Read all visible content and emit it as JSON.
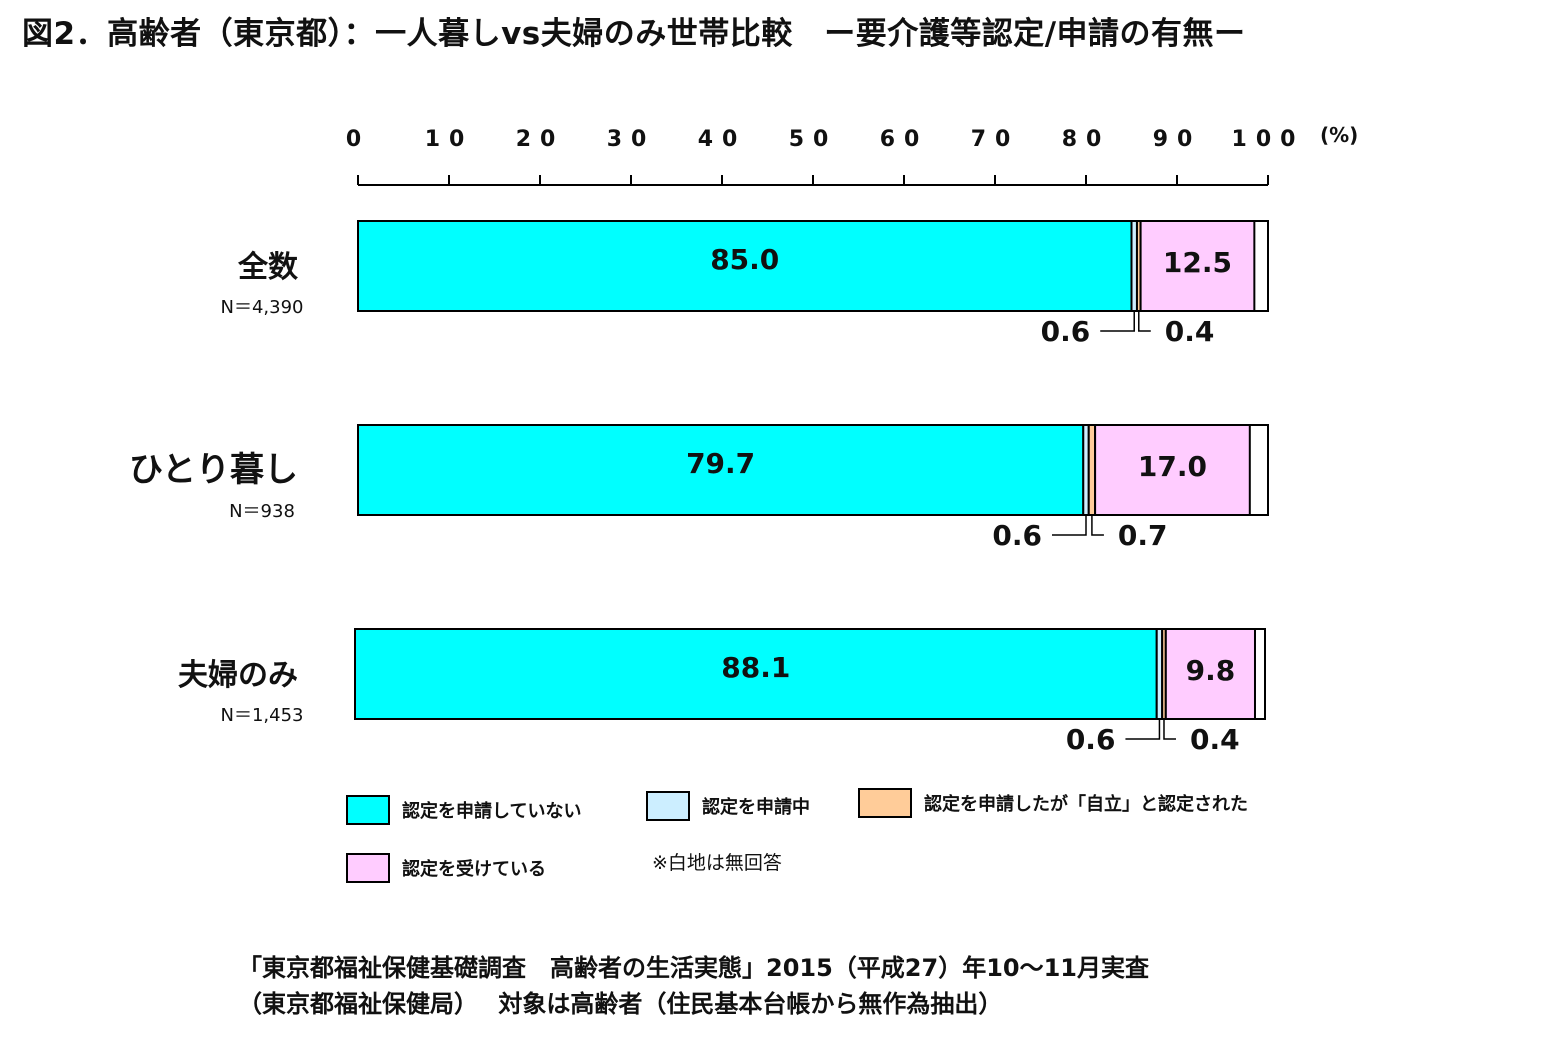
{
  "title": "図2．高齢者（東京都）：一人暮しvs夫婦のみ世帯比較　ー要介護等認定/申請の有無ー",
  "chart_data": {
    "type": "bar",
    "orientation": "horizontal",
    "stacked": true,
    "xlim": [
      0,
      100
    ],
    "x_ticks": [
      "0",
      "10",
      "20",
      "30",
      "40",
      "50",
      "60",
      "70",
      "80",
      "90",
      "100"
    ],
    "x_unit": "(%)",
    "grid": false,
    "legend_position": "bottom",
    "categories": [
      {
        "name": "全数",
        "n": "N＝4,390"
      },
      {
        "name": "ひとり暮し",
        "n": "N＝938"
      },
      {
        "name": "夫婦のみ",
        "n": "N＝1,453"
      }
    ],
    "series": [
      {
        "name": "認定を申請していない",
        "color": "#00ffff",
        "values": [
          85.0,
          79.7,
          88.1
        ],
        "labels": [
          "85.0",
          "79.7",
          "88.1"
        ]
      },
      {
        "name": "認定を申請中",
        "color": "#cceeff",
        "values": [
          0.6,
          0.6,
          0.6
        ],
        "labels": [
          "0.6",
          "0.6",
          "0.6"
        ]
      },
      {
        "name": "認定を申請したが「自立」と認定された",
        "color": "#ffcc99",
        "values": [
          0.4,
          0.7,
          0.4
        ],
        "labels": [
          "0.4",
          "0.7",
          "0.4"
        ]
      },
      {
        "name": "認定を受けている",
        "color": "#ffccff",
        "values": [
          12.5,
          17.0,
          9.8
        ],
        "labels": [
          "12.5",
          "17.0",
          "9.8"
        ]
      }
    ],
    "unanswered_color": "#ffffff"
  },
  "legend_note": "※白地は無回答",
  "source": {
    "line1": "「東京都福祉保健基礎調査　高齢者の生活実態」2015（平成27）年10～11月実査",
    "line2": "（東京都福祉保健局）　 対象は高齢者（住民基本台帳から無作為抽出）"
  }
}
